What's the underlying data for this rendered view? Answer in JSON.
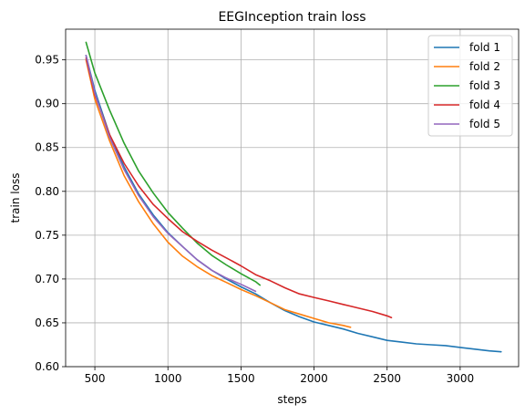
{
  "chart_data": {
    "type": "line",
    "title": "EEGInception train loss",
    "xlabel": "steps",
    "ylabel": "train loss",
    "xlim": [
      300,
      3400
    ],
    "ylim": [
      0.6,
      0.985
    ],
    "xticks": [
      500,
      1000,
      1500,
      2000,
      2500,
      3000
    ],
    "yticks": [
      0.6,
      0.65,
      0.7,
      0.75,
      0.8,
      0.85,
      0.9,
      0.95
    ],
    "grid": true,
    "legend_position": "top-right",
    "series": [
      {
        "name": "fold 1",
        "color": "#1f77b4",
        "x": [
          440,
          500,
          600,
          700,
          800,
          900,
          1000,
          1100,
          1200,
          1300,
          1400,
          1500,
          1600,
          1700,
          1800,
          1900,
          2000,
          2100,
          2200,
          2300,
          2400,
          2500,
          2600,
          2700,
          2800,
          2900,
          3000,
          3100,
          3200,
          3280
        ],
        "y": [
          0.955,
          0.915,
          0.865,
          0.828,
          0.797,
          0.773,
          0.753,
          0.737,
          0.722,
          0.71,
          0.7,
          0.691,
          0.683,
          0.673,
          0.664,
          0.657,
          0.651,
          0.647,
          0.643,
          0.638,
          0.634,
          0.63,
          0.628,
          0.626,
          0.625,
          0.624,
          0.622,
          0.62,
          0.618,
          0.617
        ]
      },
      {
        "name": "fold 2",
        "color": "#ff7f0e",
        "x": [
          440,
          500,
          600,
          700,
          800,
          900,
          1000,
          1100,
          1200,
          1300,
          1400,
          1500,
          1600,
          1700,
          1800,
          1900,
          2000,
          2100,
          2200,
          2250
        ],
        "y": [
          0.95,
          0.905,
          0.858,
          0.818,
          0.788,
          0.763,
          0.742,
          0.726,
          0.714,
          0.704,
          0.696,
          0.688,
          0.681,
          0.673,
          0.665,
          0.66,
          0.655,
          0.65,
          0.647,
          0.645
        ]
      },
      {
        "name": "fold 3",
        "color": "#2ca02c",
        "x": [
          440,
          500,
          600,
          700,
          800,
          900,
          1000,
          1100,
          1200,
          1300,
          1400,
          1500,
          1600,
          1630
        ],
        "y": [
          0.97,
          0.935,
          0.893,
          0.855,
          0.823,
          0.798,
          0.776,
          0.758,
          0.741,
          0.727,
          0.716,
          0.706,
          0.697,
          0.693
        ]
      },
      {
        "name": "fold 4",
        "color": "#d62728",
        "x": [
          440,
          500,
          600,
          700,
          800,
          900,
          1000,
          1100,
          1200,
          1300,
          1400,
          1500,
          1600,
          1700,
          1800,
          1900,
          2000,
          2100,
          2200,
          2300,
          2400,
          2500,
          2530
        ],
        "y": [
          0.952,
          0.91,
          0.865,
          0.832,
          0.806,
          0.785,
          0.769,
          0.754,
          0.743,
          0.733,
          0.724,
          0.715,
          0.705,
          0.698,
          0.69,
          0.683,
          0.679,
          0.675,
          0.671,
          0.667,
          0.663,
          0.658,
          0.656
        ]
      },
      {
        "name": "fold 5",
        "color": "#9467bd",
        "x": [
          440,
          500,
          600,
          700,
          800,
          900,
          1000,
          1100,
          1200,
          1300,
          1400,
          1500,
          1600
        ],
        "y": [
          0.955,
          0.912,
          0.862,
          0.825,
          0.795,
          0.771,
          0.752,
          0.737,
          0.722,
          0.71,
          0.701,
          0.694,
          0.686
        ]
      }
    ]
  }
}
